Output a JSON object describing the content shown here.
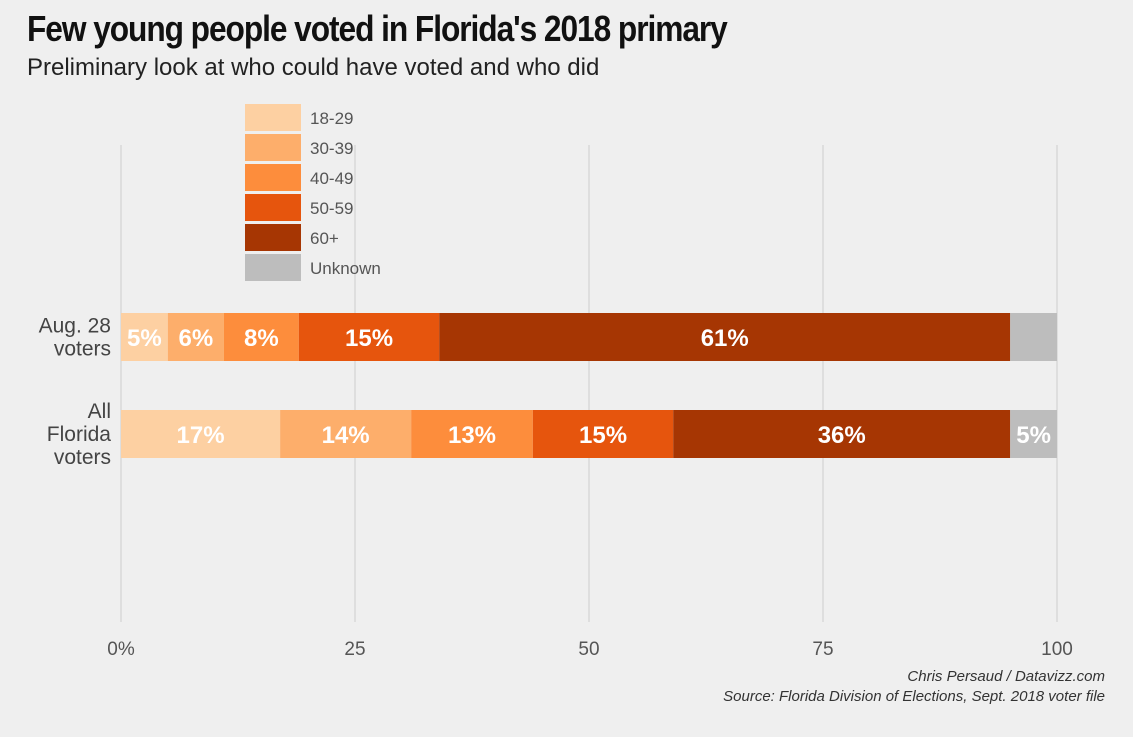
{
  "title": "Few young people voted in Florida's 2018 primary",
  "subtitle": "Preliminary look at who could have voted and who did",
  "credit": {
    "author": "Chris Persaud / Datavizz.com",
    "source": "Source: Florida Division of Elections, Sept. 2018 voter file"
  },
  "chart_data": {
    "type": "bar",
    "orientation": "horizontal",
    "stacked": true,
    "categories": [
      [
        "Aug. 28",
        "voters"
      ],
      [
        "All",
        "Florida",
        "voters"
      ]
    ],
    "series": [
      {
        "name": "18-29",
        "color": "#fdd0a2",
        "values": [
          5,
          17
        ],
        "labels": [
          "5%",
          "17%"
        ]
      },
      {
        "name": "30-39",
        "color": "#fdae6b",
        "values": [
          6,
          14
        ],
        "labels": [
          "6%",
          "14%"
        ]
      },
      {
        "name": "40-49",
        "color": "#fd8d3c",
        "values": [
          8,
          13
        ],
        "labels": [
          "8%",
          "13%"
        ]
      },
      {
        "name": "50-59",
        "color": "#e6550d",
        "values": [
          15,
          15
        ],
        "labels": [
          "15%",
          "15%"
        ]
      },
      {
        "name": "60+",
        "color": "#a63603",
        "values": [
          61,
          36
        ],
        "labels": [
          "61%",
          "36%"
        ]
      },
      {
        "name": "Unknown",
        "color": "#bdbdbd",
        "values": [
          5,
          5
        ],
        "labels": [
          "",
          "5%"
        ]
      }
    ],
    "xlim": [
      0,
      100
    ],
    "x_ticks": [
      0,
      25,
      50,
      75,
      100
    ],
    "x_tick_labels": [
      "0%",
      "25",
      "50",
      "75",
      "100"
    ],
    "grid": true,
    "legend_position": "top-left"
  }
}
